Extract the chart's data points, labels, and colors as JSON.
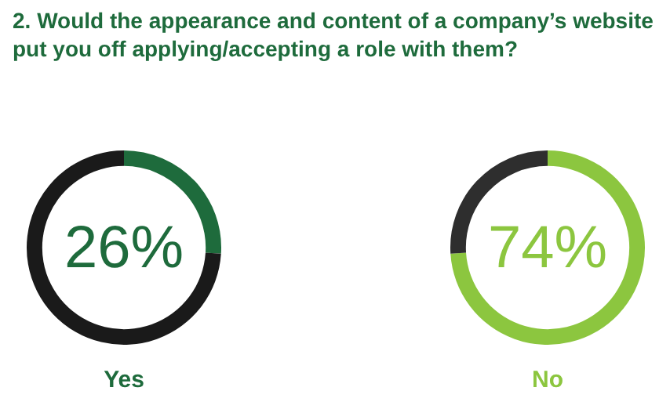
{
  "chart_data": [
    {
      "type": "donut",
      "title": "2. Would the appearance and content of a company’s website put you off applying/accepting a role with them?",
      "xlabel": "Yes",
      "categories": [
        null,
        null
      ],
      "values": [
        26,
        74
      ],
      "colors": [
        "#1e6b3c",
        "#1a1a1a"
      ],
      "annotations": [
        "26%"
      ]
    },
    {
      "type": "donut",
      "xlabel": "No",
      "categories": [
        null,
        null
      ],
      "values": [
        74,
        26
      ],
      "colors": [
        "#8cc63f",
        "#2e2e2e"
      ],
      "annotations": [
        "74%"
      ]
    }
  ]
}
